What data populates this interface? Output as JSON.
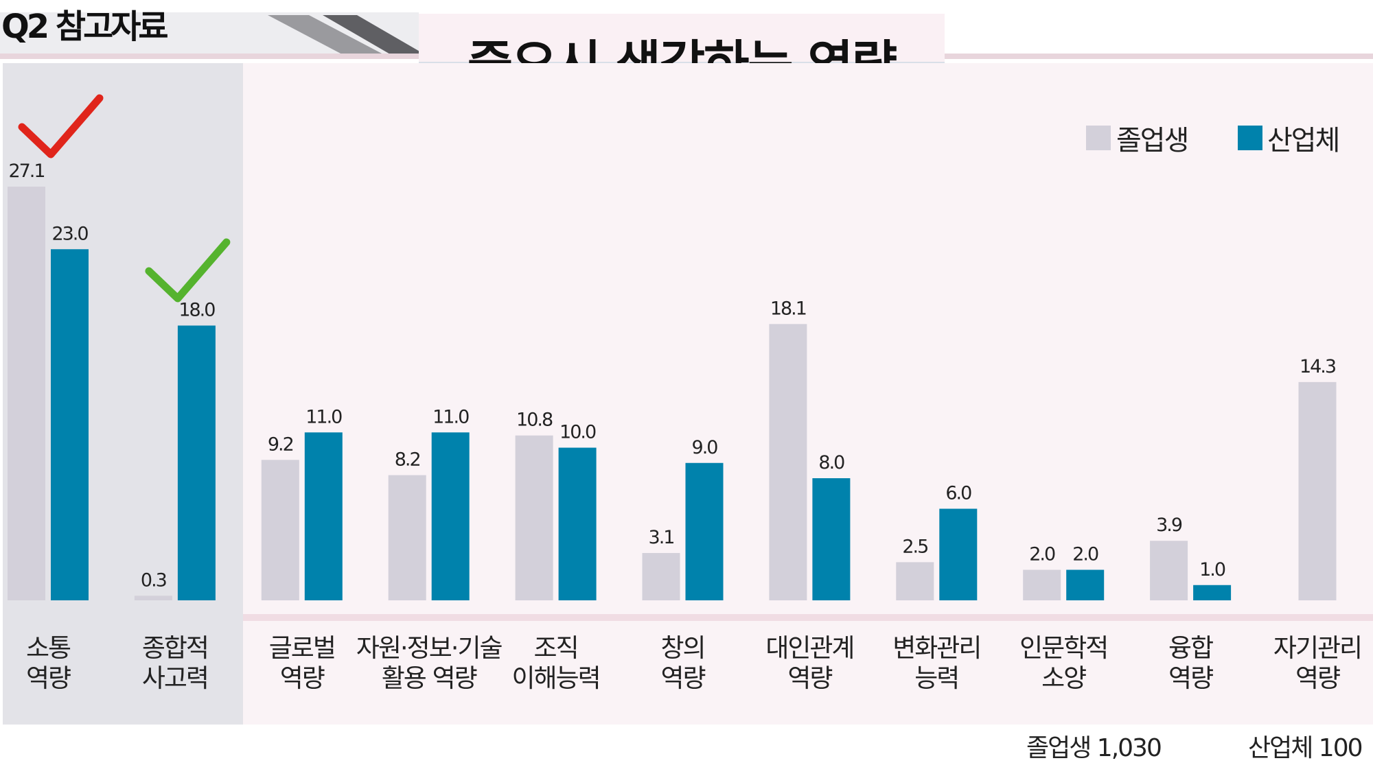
{
  "header": {
    "badge": "Q2 참고자료",
    "title": "중요시 생각하는 역량"
  },
  "legend": [
    {
      "label": "졸업생",
      "color": "#d3d0da"
    },
    {
      "label": "산업체",
      "color": "#0082ac"
    }
  ],
  "footer": {
    "graduates": "졸업생 1,030",
    "industry": "산업체 100"
  },
  "colors": {
    "graduates": "#d3d0da",
    "industry": "#0082ac",
    "highlight_panel": "#e3e3e8",
    "plot_background": "#faf3f6",
    "check_red": "#e0251b",
    "check_green": "#55b32e"
  },
  "chart_data": {
    "type": "bar",
    "categories": [
      [
        "소통",
        "역량"
      ],
      [
        "종합적",
        "사고력"
      ],
      [
        "글로벌",
        "역량"
      ],
      [
        "자원·정보·기술",
        "활용 역량"
      ],
      [
        "조직",
        "이해능력"
      ],
      [
        "창의",
        "역량"
      ],
      [
        "대인관계",
        "역량"
      ],
      [
        "변화관리",
        "능력"
      ],
      [
        "인문학적",
        "소양"
      ],
      [
        "융합",
        "역량"
      ],
      [
        "자기관리",
        "역량"
      ]
    ],
    "series": [
      {
        "name": "졸업생",
        "values": [
          27.1,
          0.3,
          9.2,
          8.2,
          10.8,
          3.1,
          18.1,
          2.5,
          2.0,
          3.9,
          14.3
        ],
        "labels": [
          "27.1",
          "0.3",
          "9.2",
          "8.2",
          "10.8",
          "3.1",
          "18.1",
          "2.5",
          "2.0",
          "3.9",
          "14.3"
        ]
      },
      {
        "name": "산업체",
        "values": [
          23.0,
          18.0,
          11.0,
          11.0,
          10.0,
          9.0,
          8.0,
          6.0,
          2.0,
          1.0,
          null
        ],
        "labels": [
          "23.0",
          "18.0",
          "11.0",
          "11.0",
          "10.0",
          "9.0",
          "8.0",
          "6.0",
          "2.0",
          "1.0",
          null
        ]
      }
    ],
    "ylim": [
      0,
      30
    ],
    "highlighted_categories": [
      0,
      1
    ],
    "checkmarks": [
      {
        "category": 0,
        "color": "red"
      },
      {
        "category": 1,
        "color": "green"
      }
    ],
    "legend_position": "top-right",
    "grid": false
  }
}
